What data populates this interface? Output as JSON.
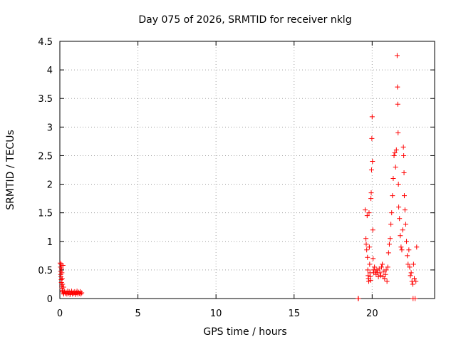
{
  "chart_data": {
    "type": "scatter",
    "title": "Day 075 of 2026, SRMTID for receiver nklg",
    "xlabel": "GPS time / hours",
    "ylabel": "SRMTID / TECUs",
    "xlim": [
      0,
      24
    ],
    "ylim": [
      0,
      4.5
    ],
    "grid": true,
    "marker": "+",
    "series_color": "#ff0000",
    "x_ticks": [
      0,
      5,
      10,
      15,
      20
    ],
    "x_tick_labels": [
      "0",
      "5",
      "10",
      "15",
      "20"
    ],
    "y_ticks": [
      0,
      0.5,
      1,
      1.5,
      2,
      2.5,
      3,
      3.5,
      4,
      4.5
    ],
    "y_tick_labels": [
      "0",
      "0.5",
      "1",
      "1.5",
      "2",
      "2.5",
      "3",
      "3.5",
      "4",
      "4.5"
    ],
    "series": [
      {
        "name": "SRMTID",
        "points": [
          [
            0.02,
            0.62
          ],
          [
            0.04,
            0.55
          ],
          [
            0.05,
            0.48
          ],
          [
            0.06,
            0.42
          ],
          [
            0.07,
            0.38
          ],
          [
            0.08,
            0.6
          ],
          [
            0.09,
            0.33
          ],
          [
            0.1,
            0.28
          ],
          [
            0.11,
            0.52
          ],
          [
            0.12,
            0.22
          ],
          [
            0.13,
            0.45
          ],
          [
            0.14,
            0.18
          ],
          [
            0.15,
            0.35
          ],
          [
            0.16,
            0.14
          ],
          [
            0.17,
            0.25
          ],
          [
            0.18,
            0.12
          ],
          [
            0.2,
            0.58
          ],
          [
            0.22,
            0.1
          ],
          [
            0.24,
            0.2
          ],
          [
            0.25,
            0.08
          ],
          [
            0.3,
            0.12
          ],
          [
            0.35,
            0.09
          ],
          [
            0.4,
            0.11
          ],
          [
            0.45,
            0.08
          ],
          [
            0.5,
            0.13
          ],
          [
            0.55,
            0.09
          ],
          [
            0.6,
            0.12
          ],
          [
            0.65,
            0.07
          ],
          [
            0.7,
            0.1
          ],
          [
            0.75,
            0.13
          ],
          [
            0.8,
            0.08
          ],
          [
            0.85,
            0.11
          ],
          [
            0.9,
            0.09
          ],
          [
            0.95,
            0.12
          ],
          [
            1.0,
            0.07
          ],
          [
            1.05,
            0.1
          ],
          [
            1.1,
            0.13
          ],
          [
            1.15,
            0.08
          ],
          [
            1.2,
            0.11
          ],
          [
            1.25,
            0.09
          ],
          [
            1.3,
            0.12
          ],
          [
            1.35,
            0.08
          ],
          [
            1.4,
            0.1
          ],
          [
            19.1,
            0.0
          ],
          [
            19.12,
            0.0
          ],
          [
            19.55,
            1.55
          ],
          [
            19.6,
            1.05
          ],
          [
            19.62,
            0.95
          ],
          [
            19.65,
            0.85
          ],
          [
            19.68,
            1.45
          ],
          [
            19.7,
            0.72
          ],
          [
            19.72,
            0.5
          ],
          [
            19.74,
            0.4
          ],
          [
            19.76,
            0.35
          ],
          [
            19.78,
            0.3
          ],
          [
            19.8,
            1.5
          ],
          [
            19.82,
            0.9
          ],
          [
            19.84,
            0.6
          ],
          [
            19.86,
            0.45
          ],
          [
            19.88,
            0.38
          ],
          [
            19.9,
            0.32
          ],
          [
            19.92,
            1.75
          ],
          [
            19.94,
            1.85
          ],
          [
            19.96,
            2.25
          ],
          [
            19.98,
            2.8
          ],
          [
            20.0,
            3.18
          ],
          [
            20.02,
            2.4
          ],
          [
            20.04,
            1.2
          ],
          [
            20.06,
            0.7
          ],
          [
            20.08,
            0.5
          ],
          [
            20.1,
            0.45
          ],
          [
            20.15,
            0.55
          ],
          [
            20.2,
            0.48
          ],
          [
            20.25,
            0.42
          ],
          [
            20.3,
            0.5
          ],
          [
            20.35,
            0.45
          ],
          [
            20.4,
            0.38
          ],
          [
            20.45,
            0.52
          ],
          [
            20.5,
            0.45
          ],
          [
            20.55,
            0.4
          ],
          [
            20.6,
            0.55
          ],
          [
            20.65,
            0.6
          ],
          [
            20.7,
            0.38
          ],
          [
            20.75,
            0.48
          ],
          [
            20.8,
            0.35
          ],
          [
            20.85,
            0.42
          ],
          [
            20.9,
            0.5
          ],
          [
            20.95,
            0.3
          ],
          [
            21.0,
            0.55
          ],
          [
            21.05,
            0.8
          ],
          [
            21.1,
            0.95
          ],
          [
            21.15,
            1.05
          ],
          [
            21.2,
            1.3
          ],
          [
            21.25,
            1.5
          ],
          [
            21.3,
            1.8
          ],
          [
            21.35,
            2.1
          ],
          [
            21.4,
            2.5
          ],
          [
            21.45,
            2.55
          ],
          [
            21.5,
            2.3
          ],
          [
            21.55,
            2.6
          ],
          [
            21.6,
            4.25
          ],
          [
            21.62,
            3.7
          ],
          [
            21.64,
            3.4
          ],
          [
            21.66,
            2.9
          ],
          [
            21.68,
            2.0
          ],
          [
            21.7,
            1.6
          ],
          [
            21.75,
            1.4
          ],
          [
            21.8,
            1.1
          ],
          [
            21.85,
            0.9
          ],
          [
            21.9,
            0.85
          ],
          [
            21.95,
            1.2
          ],
          [
            22.0,
            2.65
          ],
          [
            22.02,
            2.5
          ],
          [
            22.04,
            2.2
          ],
          [
            22.06,
            1.8
          ],
          [
            22.1,
            1.55
          ],
          [
            22.15,
            1.3
          ],
          [
            22.2,
            1.0
          ],
          [
            22.25,
            0.75
          ],
          [
            22.3,
            0.6
          ],
          [
            22.35,
            0.85
          ],
          [
            22.4,
            0.55
          ],
          [
            22.45,
            0.4
          ],
          [
            22.5,
            0.45
          ],
          [
            22.55,
            0.3
          ],
          [
            22.6,
            0.25
          ],
          [
            22.62,
            0.0
          ],
          [
            22.65,
            0.6
          ],
          [
            22.7,
            0.35
          ],
          [
            22.75,
            0.0
          ],
          [
            22.8,
            0.3
          ],
          [
            22.85,
            0.9
          ]
        ]
      }
    ]
  }
}
